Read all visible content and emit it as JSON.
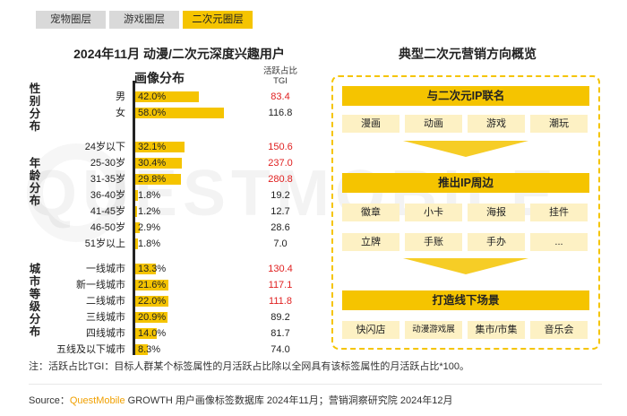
{
  "tabs": [
    {
      "label": "宠物圈层",
      "active": false
    },
    {
      "label": "游戏圈层",
      "active": false
    },
    {
      "label": "二次元圈层",
      "active": true
    }
  ],
  "watermark": "QUESTMOBILE",
  "left_title_line1": "2024年11月 动漫/二次元深度兴趣用户",
  "left_title_line2": "画像分布",
  "tgi_header_line1": "活跃占比",
  "tgi_header_line2": "TGI",
  "chart_data": {
    "type": "bar",
    "orientation": "horizontal",
    "title": "2024年11月 动漫/二次元深度兴趣用户画像分布",
    "tgi_label": "活跃占比TGI",
    "xlim": [
      0,
      100
    ],
    "groups": [
      {
        "name": "性别分布",
        "categories": [
          "男",
          "女"
        ],
        "values": [
          42.0,
          58.0
        ],
        "tgi": [
          83.4,
          116.8
        ],
        "tgi_highlight": [
          true,
          false
        ]
      },
      {
        "name": "年龄分布",
        "categories": [
          "24岁以下",
          "25-30岁",
          "31-35岁",
          "36-40岁",
          "41-45岁",
          "46-50岁",
          "51岁以上"
        ],
        "values": [
          32.1,
          30.4,
          29.8,
          1.8,
          1.2,
          2.9,
          1.8
        ],
        "tgi": [
          150.6,
          237.0,
          280.8,
          19.2,
          12.7,
          28.6,
          7.0
        ],
        "tgi_highlight": [
          true,
          true,
          true,
          false,
          false,
          false,
          false
        ]
      },
      {
        "name": "城市等级分布",
        "categories": [
          "一线城市",
          "新一线城市",
          "二线城市",
          "三线城市",
          "四线城市",
          "五线及以下城市"
        ],
        "values": [
          13.3,
          21.6,
          22.0,
          20.9,
          14.0,
          8.3
        ],
        "tgi": [
          130.4,
          117.1,
          111.8,
          89.2,
          81.7,
          74.0
        ],
        "tgi_highlight": [
          true,
          true,
          true,
          false,
          false,
          false
        ]
      }
    ],
    "colors": {
      "bar": "#f5c400",
      "tgi_high": "#e02020",
      "tgi_normal": "#222222"
    }
  },
  "right_title": "典型二次元营销方向概览",
  "marketing": [
    {
      "head": "与二次元IP联名",
      "items": [
        "漫画",
        "动画",
        "游戏",
        "潮玩"
      ]
    },
    {
      "head": "推出IP周边",
      "items": [
        "徽章",
        "小卡",
        "海报",
        "挂件",
        "立牌",
        "手账",
        "手办",
        "..."
      ]
    },
    {
      "head": "打造线下场景",
      "items": [
        "快闪店",
        "动漫游戏展",
        "集市/市集",
        "音乐会"
      ]
    }
  ],
  "note": "注：活跃占比TGI：目标人群某个标签属性的月活跃占比除以全网具有该标签属性的月活跃占比*100。",
  "source_prefix": "Source：",
  "source_brand": "QuestMobile",
  "source_rest": " GROWTH 用户画像标签数据库 2024年11月；营销洞察研究院 2024年12月"
}
